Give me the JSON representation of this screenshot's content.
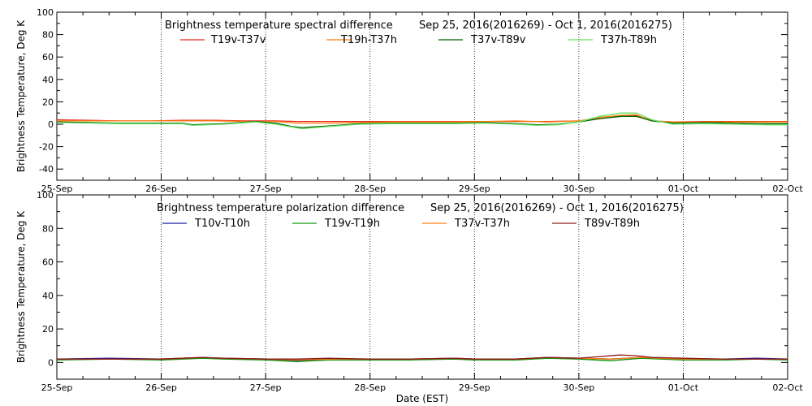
{
  "xlabel": "Date (EST)",
  "x_ticks": [
    "25-Sep",
    "26-Sep",
    "27-Sep",
    "28-Sep",
    "29-Sep",
    "30-Sep",
    "01-Oct",
    "02-Oct"
  ],
  "charts": [
    {
      "id": "top",
      "type": "line",
      "title": "Brightness temperature spectral difference",
      "date_range": "Sep 25, 2016(2016269) - Oct  1, 2016(2016275)",
      "ylabel": "Brightness Temperature, Deg K",
      "ylim": [
        -50,
        100
      ],
      "y_ticks": [
        -40,
        -20,
        0,
        20,
        40,
        60,
        80,
        100
      ],
      "xlim": [
        0,
        7
      ],
      "grid": "vertical dotted lines at each day",
      "legend": "top, single row",
      "series": [
        {
          "name": "T19v-T37v",
          "color": "#e8281e",
          "x": [
            0,
            0.3,
            0.6,
            0.9,
            1.2,
            1.5,
            1.8,
            2.1,
            2.3,
            2.6,
            2.9,
            3.2,
            3.5,
            3.8,
            4.1,
            4.4,
            4.7,
            5.0,
            5.2,
            5.4,
            5.55,
            5.7,
            5.9,
            6.2,
            6.5,
            6.8,
            7.0
          ],
          "y": [
            4,
            3.5,
            3,
            3,
            3.5,
            3.5,
            3,
            3,
            2.5,
            2.5,
            2.5,
            2.5,
            2.5,
            2.5,
            2.5,
            2.5,
            2.5,
            3,
            5,
            7,
            7.5,
            3,
            2,
            2.5,
            2.5,
            2.5,
            2.5
          ]
        },
        {
          "name": "T19h-T37h",
          "color": "#ff7f0e",
          "x": [
            0,
            0.3,
            0.6,
            0.9,
            1.2,
            1.5,
            1.8,
            2.1,
            2.3,
            2.6,
            2.9,
            3.2,
            3.5,
            3.8,
            4.1,
            4.4,
            4.7,
            5.0,
            5.2,
            5.4,
            5.55,
            5.7,
            5.9,
            6.2,
            6.5,
            6.8,
            7.0
          ],
          "y": [
            3,
            3,
            3,
            3,
            3,
            3,
            2.5,
            2.5,
            1,
            1,
            1.5,
            2,
            2,
            2,
            2.5,
            3,
            2,
            3,
            6,
            8,
            8.5,
            3,
            2,
            2,
            2,
            2,
            2
          ]
        },
        {
          "name": "T37v-T89v",
          "color": "#006400",
          "x": [
            0,
            0.3,
            0.6,
            0.9,
            1.2,
            1.3,
            1.6,
            1.9,
            2.1,
            2.25,
            2.35,
            2.6,
            2.9,
            3.2,
            3.5,
            3.8,
            4.1,
            4.4,
            4.6,
            4.8,
            5.0,
            5.2,
            5.4,
            5.55,
            5.7,
            5.9,
            6.2,
            6.5,
            6.8,
            7.0
          ],
          "y": [
            2,
            1.5,
            1,
            1,
            1,
            -0.5,
            0.5,
            2.5,
            1,
            -2,
            -3,
            -1.5,
            0.5,
            1,
            1,
            1,
            1.5,
            0.5,
            -0.5,
            0,
            2,
            5,
            7,
            7,
            3,
            1,
            1.5,
            1,
            0.5,
            0.5
          ]
        },
        {
          "name": "T37h-T89h",
          "color": "#66e066",
          "x": [
            0,
            0.3,
            0.6,
            0.9,
            1.2,
            1.3,
            1.6,
            1.9,
            2.1,
            2.25,
            2.35,
            2.6,
            2.9,
            3.2,
            3.5,
            3.8,
            4.1,
            4.4,
            4.6,
            4.8,
            5.0,
            5.2,
            5.4,
            5.55,
            5.7,
            5.9,
            6.2,
            6.5,
            6.8,
            7.0
          ],
          "y": [
            1.5,
            1,
            0.5,
            0.5,
            0.5,
            -1,
            0,
            2,
            0,
            -2.5,
            -4,
            -2,
            0,
            0.5,
            0.5,
            0.5,
            1,
            0,
            -1,
            -0.5,
            2,
            7,
            10,
            10,
            4,
            0,
            0.5,
            0,
            -0.5,
            -0.5
          ]
        }
      ]
    },
    {
      "id": "bottom",
      "type": "line",
      "title": "Brightness temperature polarization difference",
      "date_range": "Sep 25, 2016(2016269) - Oct  1, 2016(2016275)",
      "ylabel": "Brightness Temperature, Deg K",
      "ylim": [
        -10,
        100
      ],
      "y_ticks": [
        0,
        20,
        40,
        60,
        80,
        100
      ],
      "xlim": [
        0,
        7
      ],
      "grid": "vertical dotted lines at each day",
      "legend": "top, single row",
      "series": [
        {
          "name": "T10v-T10h",
          "color": "#1a1aa0",
          "x": [
            0,
            0.5,
            1.0,
            1.4,
            1.6,
            2.0,
            2.3,
            2.6,
            3.0,
            3.4,
            3.8,
            4.0,
            4.4,
            4.7,
            5.0,
            5.3,
            5.6,
            6.0,
            6.4,
            6.7,
            7.0
          ],
          "y": [
            2,
            2.5,
            2,
            3,
            2.5,
            2,
            1,
            2,
            2,
            2,
            2.5,
            2,
            2,
            3,
            2.5,
            2,
            3,
            2,
            2,
            2.5,
            2
          ]
        },
        {
          "name": "T19v-T19h",
          "color": "#129612",
          "x": [
            0,
            0.5,
            1.0,
            1.4,
            1.6,
            2.0,
            2.3,
            2.6,
            3.0,
            3.4,
            3.8,
            4.0,
            4.4,
            4.7,
            5.0,
            5.3,
            5.6,
            6.0,
            6.4,
            6.7,
            7.0
          ],
          "y": [
            1.5,
            2,
            1.5,
            2.5,
            2,
            1.5,
            0.5,
            1.5,
            1.5,
            1.5,
            2,
            1.5,
            1.5,
            2.5,
            2,
            1,
            2.5,
            1.5,
            1.5,
            2,
            1.5
          ]
        },
        {
          "name": "T37v-T37h",
          "color": "#ff7f0e",
          "x": [
            0,
            0.5,
            1.0,
            1.4,
            1.6,
            2.0,
            2.3,
            2.6,
            3.0,
            3.4,
            3.8,
            4.0,
            4.4,
            4.7,
            5.0,
            5.3,
            5.6,
            6.0,
            6.4,
            6.7,
            7.0
          ],
          "y": [
            2,
            2,
            2,
            3,
            2.5,
            2,
            1.5,
            2,
            2,
            2,
            2.5,
            2,
            2,
            3,
            2.5,
            2,
            3,
            2,
            2,
            2,
            2
          ]
        },
        {
          "name": "T89v-T89h",
          "color": "#8b1a1a",
          "x": [
            0,
            0.5,
            1.0,
            1.4,
            1.6,
            2.0,
            2.3,
            2.6,
            3.0,
            3.4,
            3.8,
            4.0,
            4.4,
            4.7,
            5.0,
            5.2,
            5.4,
            5.55,
            5.7,
            6.0,
            6.4,
            6.7,
            7.0
          ],
          "y": [
            2,
            2,
            2,
            3,
            2.5,
            2,
            2,
            2.5,
            2,
            2,
            2.5,
            2,
            2,
            3,
            2.5,
            3.5,
            4.5,
            4,
            3,
            2.5,
            2,
            2,
            2
          ]
        }
      ]
    }
  ]
}
